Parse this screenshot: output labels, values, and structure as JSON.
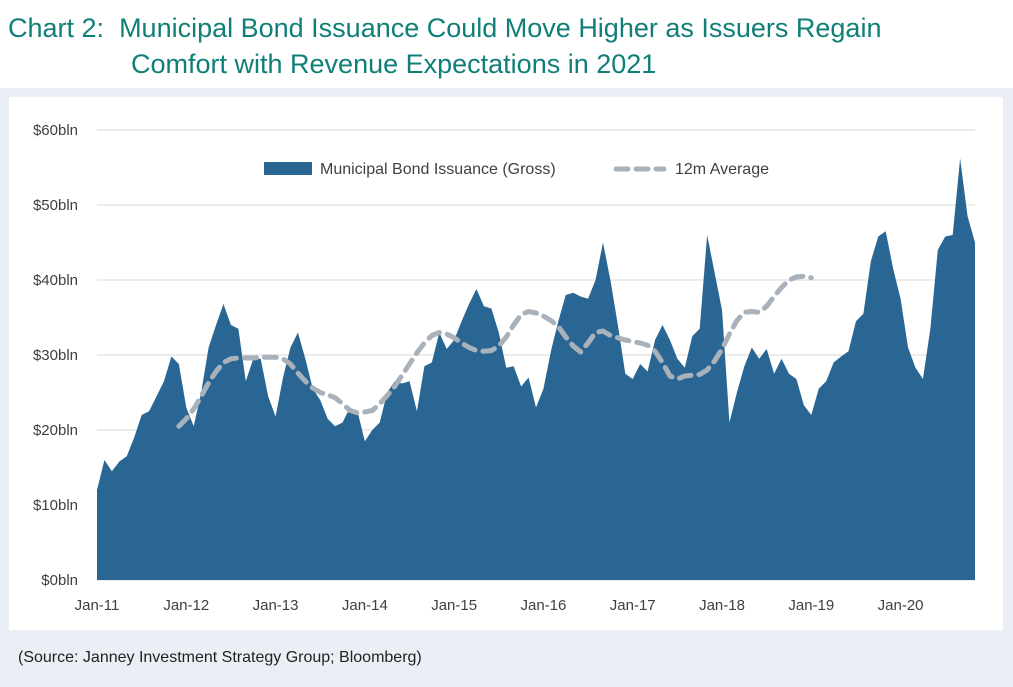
{
  "title": {
    "prefix": "Chart 2:",
    "line1": "Municipal Bond Issuance Could Move Higher as Issuers Regain",
    "line2": "Comfort with Revenue Expectations in 2021"
  },
  "source": "(Source: Janney Investment Strategy Group; Bloomberg)",
  "colors": {
    "title": "#0f7f78",
    "area": "#2a6694",
    "average": "#a9b2bb",
    "panel": "#eaeff6",
    "grid": "#d9d9d9"
  },
  "chart_data": {
    "type": "area",
    "title": "Municipal Bond Issuance Could Move Higher as Issuers Regain Comfort with Revenue Expectations in 2021",
    "xlabel": "",
    "ylabel": "",
    "ylim": [
      0,
      60
    ],
    "grid": true,
    "legend_position": "top-center",
    "y_ticks": [
      0,
      10,
      20,
      30,
      40,
      50,
      60
    ],
    "y_tick_labels": [
      "$0bln",
      "$10bln",
      "$20bln",
      "$30bln",
      "$40bln",
      "$50bln",
      "$60bln"
    ],
    "x_tick_labels": [
      "Jan-11",
      "Jan-12",
      "Jan-13",
      "Jan-14",
      "Jan-15",
      "Jan-16",
      "Jan-17",
      "Jan-18",
      "Jan-19",
      "Jan-20"
    ],
    "start": "Jan-11",
    "series": [
      {
        "name": "Municipal Bond Issuance (Gross)",
        "style": "area",
        "start_index": 0,
        "values": [
          12,
          16,
          14.5,
          15.8,
          16.5,
          19,
          22,
          22.5,
          24.5,
          26.5,
          29.8,
          28.8,
          23,
          20.5,
          25,
          31,
          34,
          36.8,
          34,
          33.5,
          26.5,
          29.5,
          29.5,
          24.5,
          21.8,
          27,
          31,
          33,
          29.5,
          25.5,
          24,
          21.5,
          20.5,
          21,
          23,
          22.5,
          18.5,
          20,
          21,
          25,
          26.5,
          26.2,
          26.5,
          22.5,
          28.5,
          29,
          33,
          30.8,
          32,
          34.5,
          36.8,
          38.8,
          36.5,
          36.2,
          33,
          28.3,
          28.5,
          25.8,
          27,
          23,
          25.5,
          30.5,
          34.5,
          38,
          38.3,
          37.8,
          37.5,
          40,
          45,
          40,
          34,
          27.5,
          26.8,
          28.8,
          27.8,
          32,
          34,
          32,
          29.5,
          28.3,
          32.5,
          33.5,
          46,
          41,
          36,
          21,
          25,
          28.5,
          31,
          29.5,
          30.8,
          27.5,
          29.5,
          27.5,
          26.8,
          23.3,
          22,
          25.5,
          26.5,
          29,
          29.8,
          30.5,
          34.5,
          35.5,
          42.5,
          45.8,
          46.5,
          41.5,
          37.5,
          31,
          28.3,
          26.8,
          33.5,
          44,
          45.8,
          46,
          56.2,
          48.5,
          45
        ]
      },
      {
        "name": "12m Average",
        "style": "dashed-line",
        "start_index": 11,
        "values": [
          20.5,
          21.5,
          22.8,
          24.5,
          26.3,
          27.8,
          29,
          29.5,
          29.6,
          29.6,
          29.6,
          29.7,
          29.7,
          29.7,
          29.5,
          28.8,
          27.6,
          26.5,
          25.6,
          25,
          24.7,
          24.3,
          23.5,
          22.6,
          22.3,
          22.4,
          22.6,
          23.5,
          24.6,
          25.8,
          27.3,
          28.8,
          30.3,
          31.6,
          32.6,
          33,
          32.8,
          32.3,
          31.6,
          31,
          30.6,
          30.5,
          30.6,
          31.2,
          32.4,
          34,
          35.4,
          35.8,
          35.6,
          35.2,
          34.6,
          33.8,
          32.4,
          31.2,
          30.4,
          31.6,
          33,
          33.2,
          32.6,
          32.3,
          32,
          31.8,
          31.6,
          31.3,
          30.5,
          29,
          27.2,
          26.8,
          27.2,
          27.3,
          27.4,
          28,
          29.2,
          30.8,
          32.8,
          34.6,
          35.7,
          35.8,
          35.7,
          36.5,
          37.8,
          39,
          40,
          40.4,
          40.5,
          40.3
        ]
      }
    ]
  }
}
